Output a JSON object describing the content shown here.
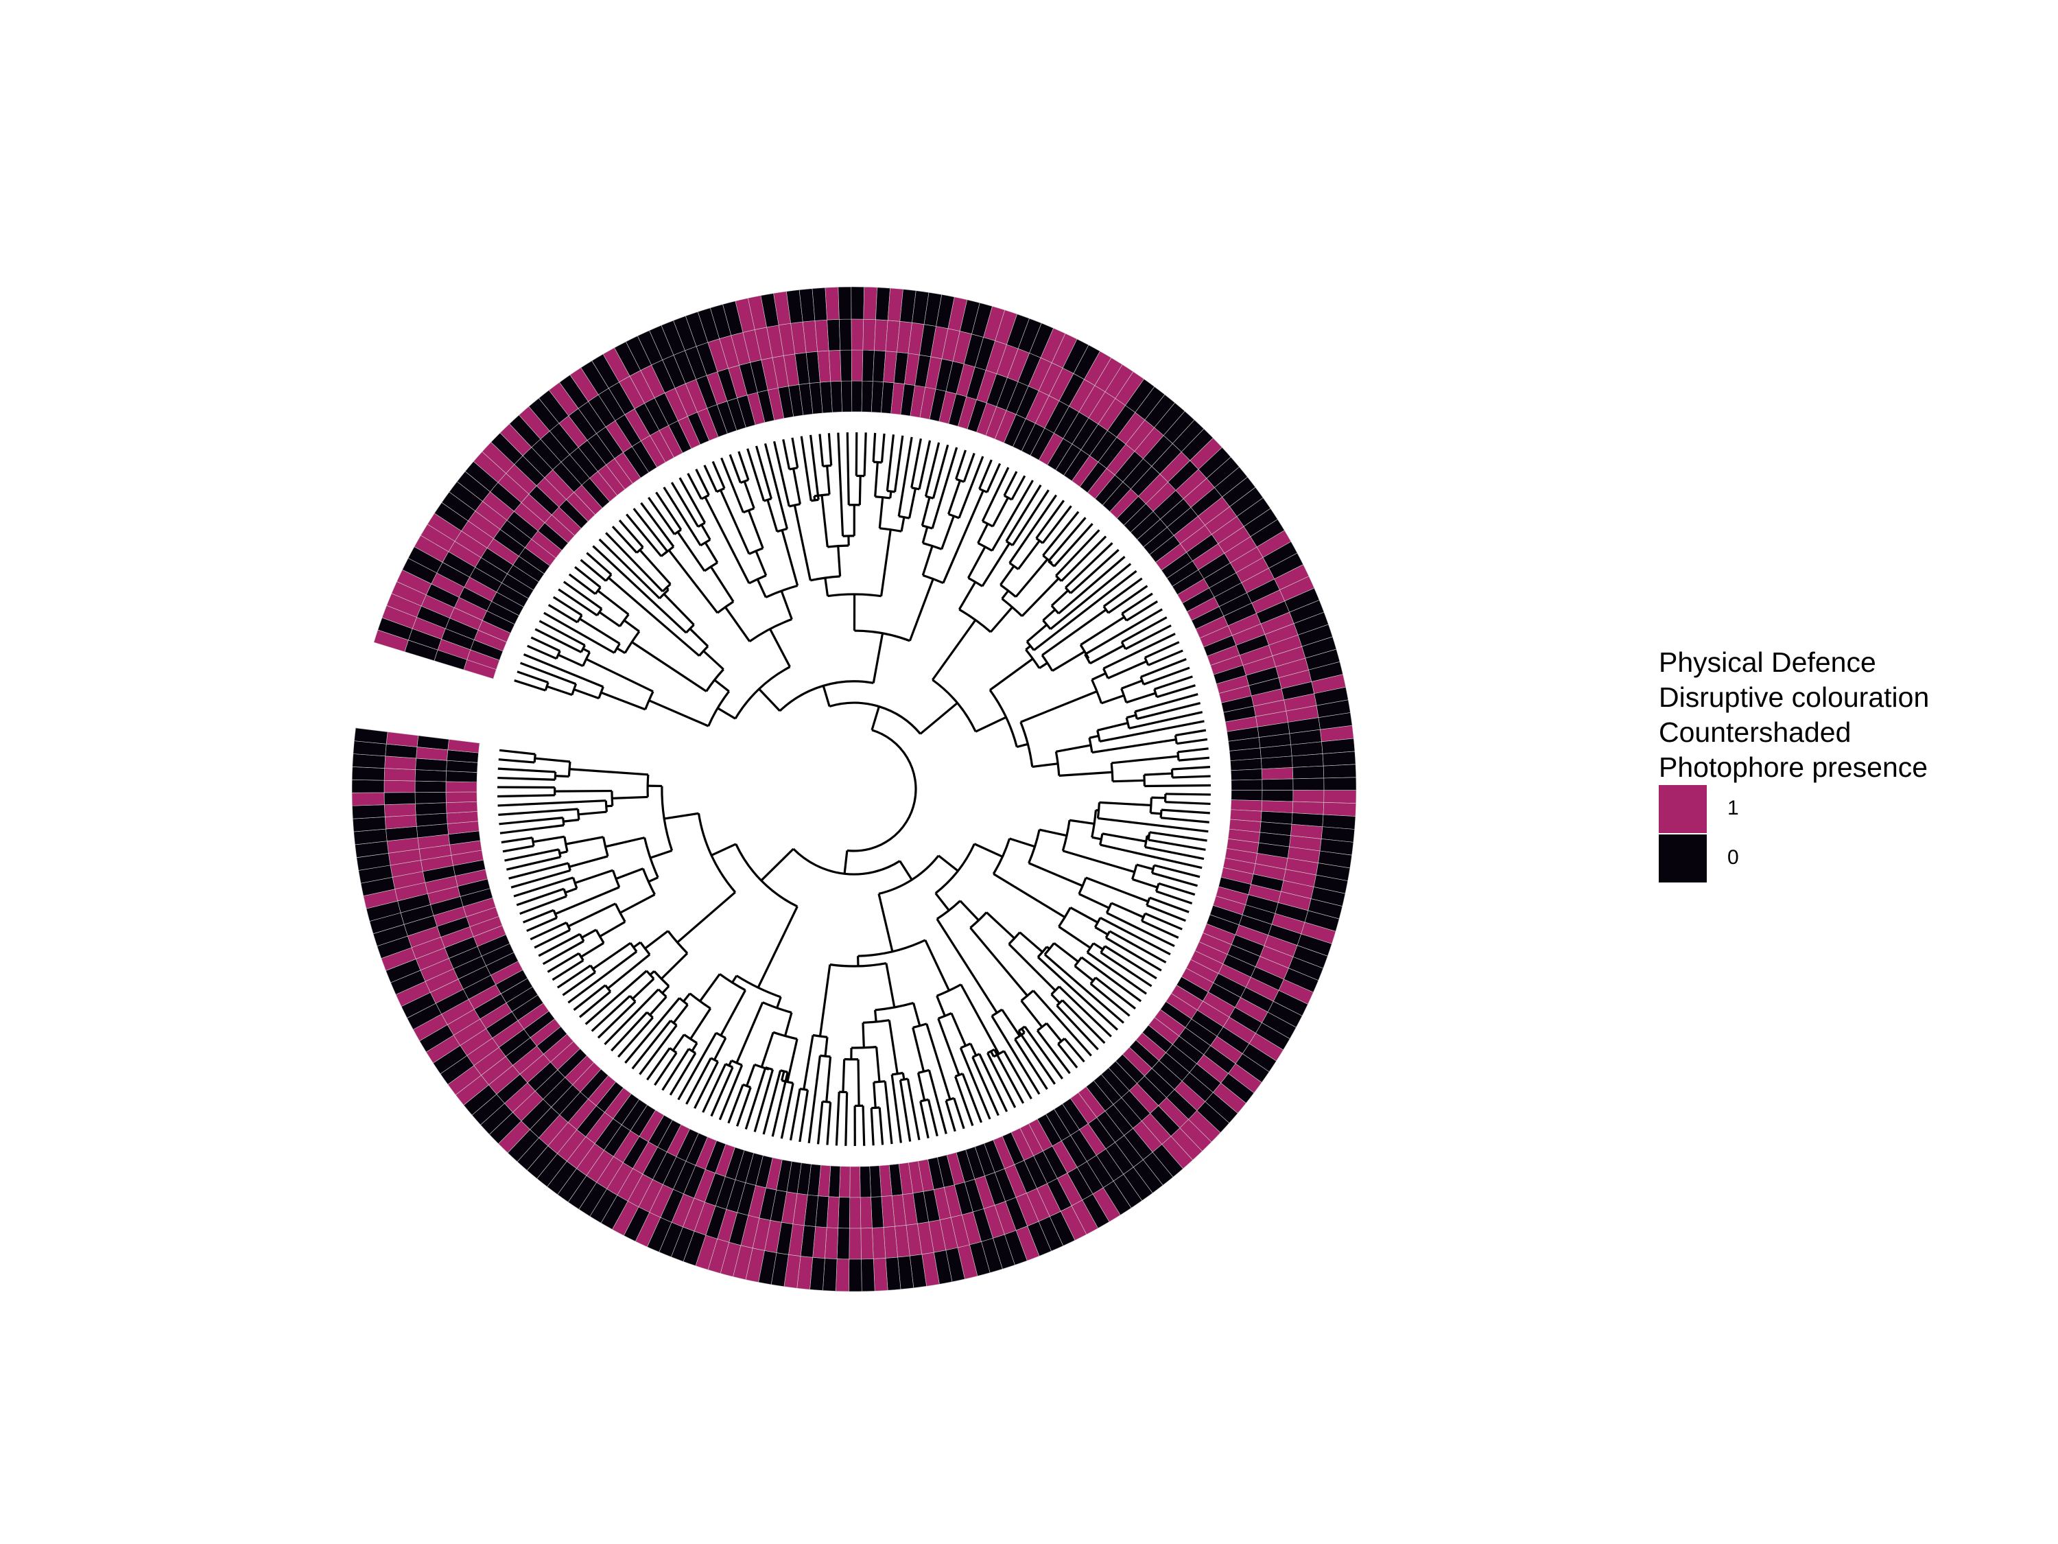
{
  "legend": {
    "title_lines": [
      "Physical Defence",
      "Disruptive colouration",
      "Countershaded",
      "Photophore presence"
    ],
    "items": [
      {
        "label": "1",
        "color": "#A7246A"
      },
      {
        "label": "0",
        "color": "#06030D"
      }
    ]
  },
  "colors": {
    "present": "#A7246A",
    "absent": "#06030D",
    "branch": "#000000",
    "grid": "#cfcfcf"
  },
  "tree": {
    "rings": [
      "Physical Defence",
      "Disruptive colouration",
      "Countershaded",
      "Photophore presence"
    ]
  }
}
